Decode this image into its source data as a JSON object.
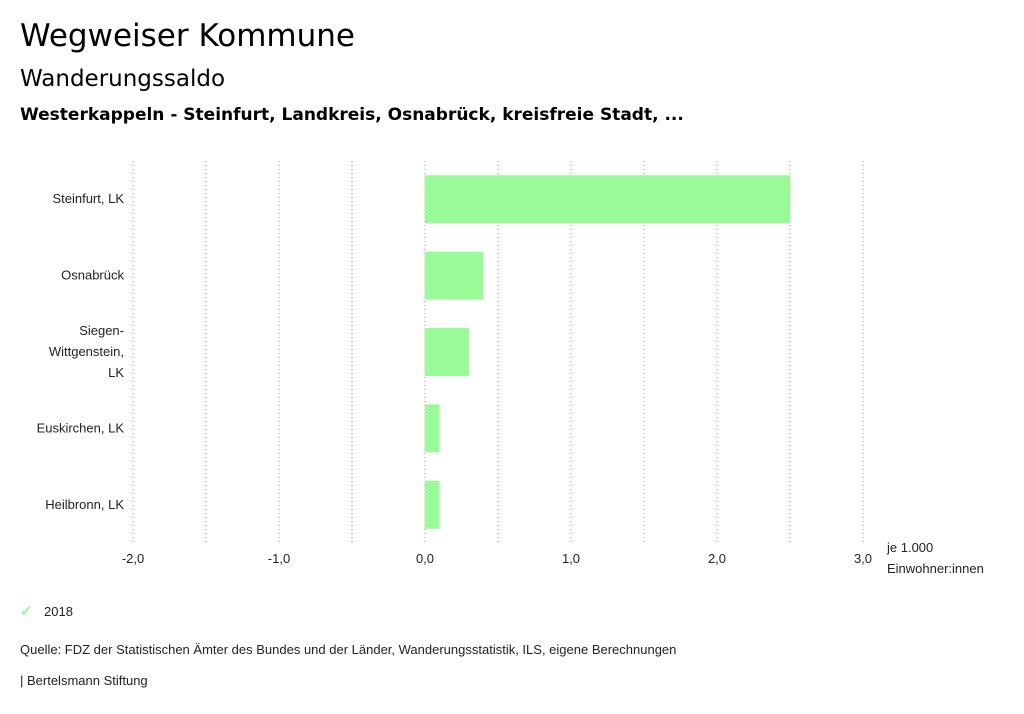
{
  "header": {
    "title": "Wegweiser Kommune",
    "subtitle": "Wanderungssaldo",
    "region": "Westerkappeln - Steinfurt, Landkreis, Osnabrück, kreisfreie Stadt, ..."
  },
  "chart_data": {
    "type": "bar",
    "orientation": "horizontal",
    "categories": [
      [
        "Steinfurt, LK"
      ],
      [
        "Osnabrück"
      ],
      [
        "Siegen-",
        "Wittgenstein,",
        "LK"
      ],
      [
        "Euskirchen, LK"
      ],
      [
        "Heilbronn, LK"
      ]
    ],
    "series": [
      {
        "name": "2018",
        "color": "#98fb98",
        "values": [
          2.5,
          0.4,
          0.3,
          0.1,
          0.1
        ]
      }
    ],
    "xlim": [
      -2.0,
      3.0
    ],
    "x_ticks": [
      -2.0,
      -1.0,
      0.0,
      1.0,
      2.0,
      3.0
    ],
    "x_tick_labels": [
      "-2,0",
      "-1,0",
      "0,0",
      "1,0",
      "2,0",
      "3,0"
    ],
    "x_gridlines": [
      -2.0,
      -1.5,
      -1.0,
      -0.5,
      0.0,
      0.5,
      1.0,
      1.5,
      2.0,
      2.5,
      3.0
    ],
    "unit_label": [
      "je 1.000",
      "Einwohner:innen"
    ],
    "grid": true,
    "legend_position": "bottom-left"
  },
  "legend": {
    "label": "2018",
    "icon": "check-icon"
  },
  "footer": {
    "source": "Quelle: FDZ der Statistischen Ämter des Bundes und der Länder, Wanderungsstatistik, ILS, eigene Berechnungen",
    "publisher": "| Bertelsmann Stiftung"
  }
}
